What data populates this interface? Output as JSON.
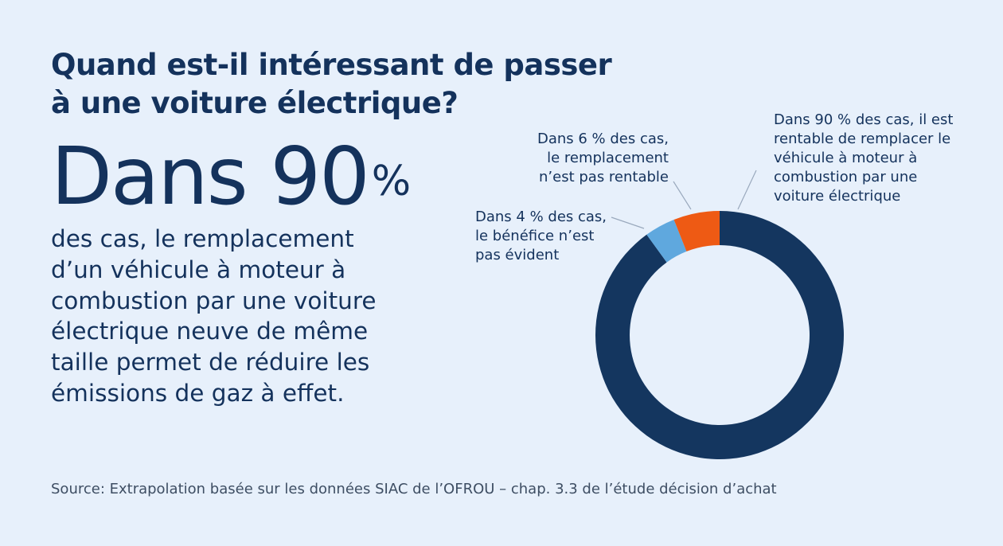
{
  "title": {
    "line1": "Quand est-il intéressant de passer",
    "line2": "à une voiture électrique?"
  },
  "headline": {
    "big": "Dans 90",
    "pct": "%",
    "lines": [
      "des cas, le remplacement",
      "d’un véhicule à moteur à",
      "combustion par une voiture",
      "électrique neuve de même",
      "taille permet de réduire les",
      "émissions de gaz à effet."
    ]
  },
  "chart_data": {
    "type": "pie",
    "subtype": "donut",
    "title": "",
    "slices": [
      {
        "label": "Rentable",
        "value": 90,
        "color": "#14365f",
        "annotation": [
          "Dans 90 % des cas, il est",
          "rentable de remplacer le",
          "véhicule à moteur à",
          "combustion par une",
          "voiture électrique"
        ]
      },
      {
        "label": "Bénéfice pas évident",
        "value": 4,
        "color": "#5fa8de",
        "annotation": [
          "Dans 4 % des cas,",
          "le bénéfice n’est",
          "pas évident"
        ]
      },
      {
        "label": "Pas rentable",
        "value": 6,
        "color": "#ee5a14",
        "annotation": [
          "Dans 6 % des cas,",
          "le remplacement",
          "n’est pas rentable"
        ]
      }
    ],
    "start_angle_deg": 0,
    "direction": "clockwise"
  },
  "source": "Source: Extrapolation basée sur les données SIAC de l’OFROU – chap. 3.3 de l’étude décision d’achat"
}
